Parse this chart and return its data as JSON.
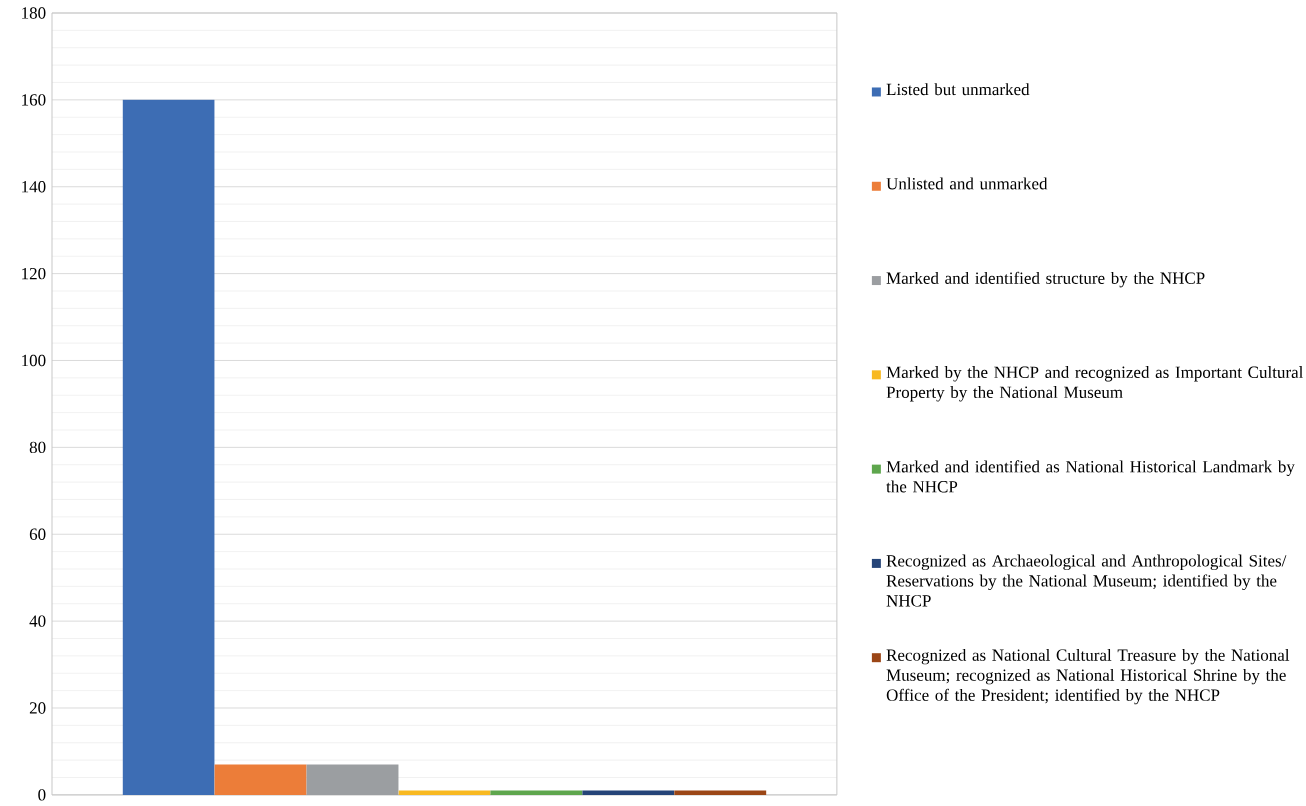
{
  "chart_data": {
    "type": "bar",
    "categories": [
      null
    ],
    "series": [
      {
        "name": "Listed but unmarked",
        "color": "#3d6db4",
        "values": [
          160
        ]
      },
      {
        "name": "Unlisted and unmarked",
        "color": "#ec7d39",
        "values": [
          7
        ]
      },
      {
        "name": "Marked and identified structure by the NHCP",
        "color": "#9b9ea1",
        "values": [
          7
        ]
      },
      {
        "name": "Marked by the NHCP and recognized as Important Cultural Property by the National Museum",
        "color": "#f8b921",
        "values": [
          1
        ]
      },
      {
        "name": "Marked and identified as National Historical Landmark by the NHCP",
        "color": "#5ea64d",
        "values": [
          1
        ]
      },
      {
        "name": "Recognized as Archaeological and Anthropological Sites/ Reservations by the National Museum; identified by the NHCP",
        "color": "#254478",
        "values": [
          1
        ]
      },
      {
        "name": "Recognized as National Cultural Treasure by the National Museum; recognized as National Historical Shrine by the Office of the President; identified by the NHCP",
        "color": "#9b4616",
        "values": [
          1
        ]
      }
    ],
    "ylim": [
      0,
      180
    ],
    "yticks": [
      0,
      20,
      40,
      60,
      80,
      100,
      120,
      140,
      160,
      180
    ],
    "grid": "y",
    "legend": "right"
  }
}
